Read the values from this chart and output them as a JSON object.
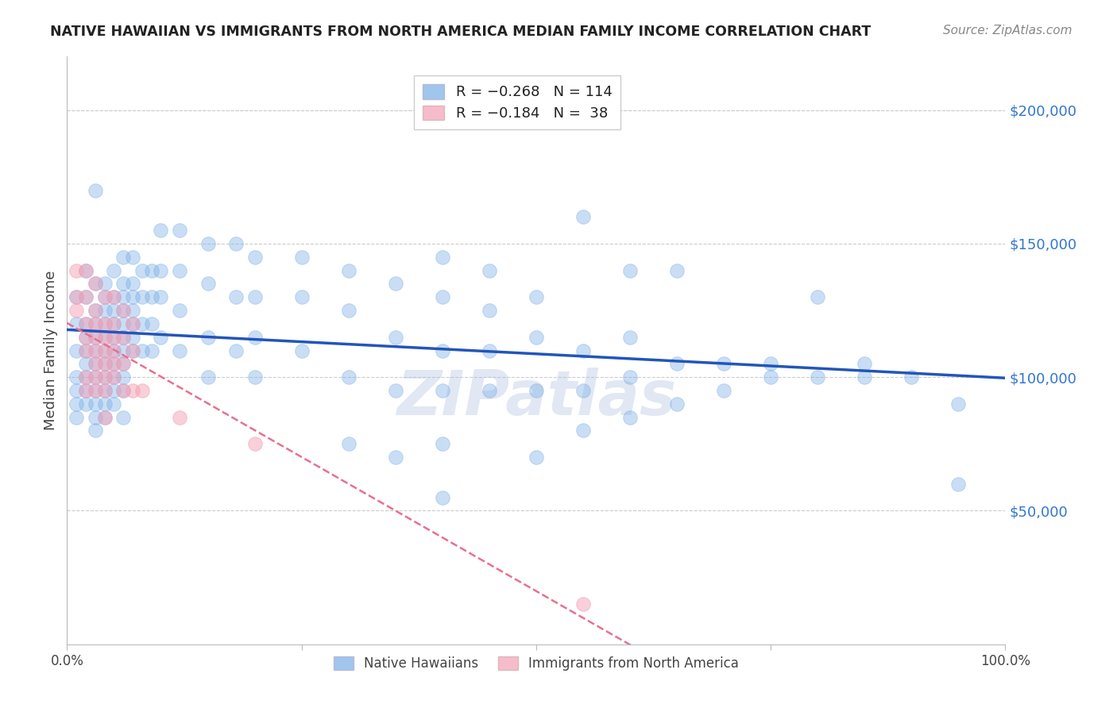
{
  "title": "NATIVE HAWAIIAN VS IMMIGRANTS FROM NORTH AMERICA MEDIAN FAMILY INCOME CORRELATION CHART",
  "source": "Source: ZipAtlas.com",
  "ylabel": "Median Family Income",
  "watermark": "ZIPatlas",
  "ytick_labels": [
    "$50,000",
    "$100,000",
    "$150,000",
    "$200,000"
  ],
  "ytick_values": [
    50000,
    100000,
    150000,
    200000
  ],
  "ylim": [
    0,
    220000
  ],
  "xlim": [
    0.0,
    1.0
  ],
  "legend_labels_bottom": [
    "Native Hawaiians",
    "Immigrants from North America"
  ],
  "blue_color": "#7aaee8",
  "pink_color": "#f4a0b5",
  "blue_line_color": "#2255bb",
  "pink_line_color": "#e87090",
  "grid_color": "#cccccc",
  "title_color": "#222222",
  "axis_label_color": "#444444",
  "ytick_color": "#3377cc",
  "xtick_color": "#444444",
  "blue_points": [
    [
      0.01,
      130000
    ],
    [
      0.01,
      120000
    ],
    [
      0.01,
      110000
    ],
    [
      0.01,
      100000
    ],
    [
      0.01,
      95000
    ],
    [
      0.01,
      90000
    ],
    [
      0.01,
      85000
    ],
    [
      0.02,
      140000
    ],
    [
      0.02,
      130000
    ],
    [
      0.02,
      120000
    ],
    [
      0.02,
      115000
    ],
    [
      0.02,
      110000
    ],
    [
      0.02,
      105000
    ],
    [
      0.02,
      100000
    ],
    [
      0.02,
      95000
    ],
    [
      0.02,
      90000
    ],
    [
      0.03,
      170000
    ],
    [
      0.03,
      135000
    ],
    [
      0.03,
      125000
    ],
    [
      0.03,
      120000
    ],
    [
      0.03,
      115000
    ],
    [
      0.03,
      110000
    ],
    [
      0.03,
      105000
    ],
    [
      0.03,
      100000
    ],
    [
      0.03,
      95000
    ],
    [
      0.03,
      90000
    ],
    [
      0.03,
      85000
    ],
    [
      0.03,
      80000
    ],
    [
      0.04,
      135000
    ],
    [
      0.04,
      130000
    ],
    [
      0.04,
      125000
    ],
    [
      0.04,
      120000
    ],
    [
      0.04,
      115000
    ],
    [
      0.04,
      110000
    ],
    [
      0.04,
      105000
    ],
    [
      0.04,
      100000
    ],
    [
      0.04,
      95000
    ],
    [
      0.04,
      90000
    ],
    [
      0.04,
      85000
    ],
    [
      0.05,
      140000
    ],
    [
      0.05,
      130000
    ],
    [
      0.05,
      125000
    ],
    [
      0.05,
      120000
    ],
    [
      0.05,
      115000
    ],
    [
      0.05,
      110000
    ],
    [
      0.05,
      105000
    ],
    [
      0.05,
      100000
    ],
    [
      0.05,
      95000
    ],
    [
      0.05,
      90000
    ],
    [
      0.06,
      145000
    ],
    [
      0.06,
      135000
    ],
    [
      0.06,
      130000
    ],
    [
      0.06,
      125000
    ],
    [
      0.06,
      120000
    ],
    [
      0.06,
      115000
    ],
    [
      0.06,
      110000
    ],
    [
      0.06,
      105000
    ],
    [
      0.06,
      100000
    ],
    [
      0.06,
      95000
    ],
    [
      0.06,
      85000
    ],
    [
      0.07,
      145000
    ],
    [
      0.07,
      135000
    ],
    [
      0.07,
      130000
    ],
    [
      0.07,
      125000
    ],
    [
      0.07,
      120000
    ],
    [
      0.07,
      115000
    ],
    [
      0.07,
      110000
    ],
    [
      0.08,
      140000
    ],
    [
      0.08,
      130000
    ],
    [
      0.08,
      120000
    ],
    [
      0.08,
      110000
    ],
    [
      0.09,
      140000
    ],
    [
      0.09,
      130000
    ],
    [
      0.09,
      120000
    ],
    [
      0.09,
      110000
    ],
    [
      0.1,
      155000
    ],
    [
      0.1,
      140000
    ],
    [
      0.1,
      130000
    ],
    [
      0.1,
      115000
    ],
    [
      0.12,
      155000
    ],
    [
      0.12,
      140000
    ],
    [
      0.12,
      125000
    ],
    [
      0.12,
      110000
    ],
    [
      0.15,
      150000
    ],
    [
      0.15,
      135000
    ],
    [
      0.15,
      115000
    ],
    [
      0.15,
      100000
    ],
    [
      0.18,
      150000
    ],
    [
      0.18,
      130000
    ],
    [
      0.18,
      110000
    ],
    [
      0.2,
      145000
    ],
    [
      0.2,
      130000
    ],
    [
      0.2,
      115000
    ],
    [
      0.2,
      100000
    ],
    [
      0.25,
      145000
    ],
    [
      0.25,
      130000
    ],
    [
      0.25,
      110000
    ],
    [
      0.3,
      140000
    ],
    [
      0.3,
      125000
    ],
    [
      0.3,
      100000
    ],
    [
      0.3,
      75000
    ],
    [
      0.35,
      135000
    ],
    [
      0.35,
      115000
    ],
    [
      0.35,
      95000
    ],
    [
      0.35,
      70000
    ],
    [
      0.4,
      145000
    ],
    [
      0.4,
      130000
    ],
    [
      0.4,
      110000
    ],
    [
      0.4,
      95000
    ],
    [
      0.4,
      75000
    ],
    [
      0.4,
      55000
    ],
    [
      0.45,
      140000
    ],
    [
      0.45,
      125000
    ],
    [
      0.45,
      110000
    ],
    [
      0.45,
      95000
    ],
    [
      0.5,
      130000
    ],
    [
      0.5,
      115000
    ],
    [
      0.5,
      95000
    ],
    [
      0.5,
      70000
    ],
    [
      0.55,
      160000
    ],
    [
      0.55,
      110000
    ],
    [
      0.55,
      95000
    ],
    [
      0.55,
      80000
    ],
    [
      0.6,
      140000
    ],
    [
      0.6,
      115000
    ],
    [
      0.6,
      100000
    ],
    [
      0.6,
      85000
    ],
    [
      0.65,
      140000
    ],
    [
      0.65,
      105000
    ],
    [
      0.65,
      90000
    ],
    [
      0.7,
      105000
    ],
    [
      0.7,
      95000
    ],
    [
      0.75,
      105000
    ],
    [
      0.75,
      100000
    ],
    [
      0.8,
      130000
    ],
    [
      0.8,
      100000
    ],
    [
      0.85,
      105000
    ],
    [
      0.85,
      100000
    ],
    [
      0.9,
      100000
    ],
    [
      0.95,
      90000
    ],
    [
      0.95,
      60000
    ]
  ],
  "pink_points": [
    [
      0.01,
      140000
    ],
    [
      0.01,
      130000
    ],
    [
      0.01,
      125000
    ],
    [
      0.02,
      140000
    ],
    [
      0.02,
      130000
    ],
    [
      0.02,
      120000
    ],
    [
      0.02,
      115000
    ],
    [
      0.02,
      110000
    ],
    [
      0.02,
      100000
    ],
    [
      0.02,
      95000
    ],
    [
      0.03,
      135000
    ],
    [
      0.03,
      125000
    ],
    [
      0.03,
      120000
    ],
    [
      0.03,
      115000
    ],
    [
      0.03,
      110000
    ],
    [
      0.03,
      105000
    ],
    [
      0.03,
      100000
    ],
    [
      0.03,
      95000
    ],
    [
      0.04,
      130000
    ],
    [
      0.04,
      120000
    ],
    [
      0.04,
      115000
    ],
    [
      0.04,
      110000
    ],
    [
      0.04,
      105000
    ],
    [
      0.04,
      100000
    ],
    [
      0.04,
      95000
    ],
    [
      0.04,
      85000
    ],
    [
      0.05,
      130000
    ],
    [
      0.05,
      120000
    ],
    [
      0.05,
      115000
    ],
    [
      0.05,
      110000
    ],
    [
      0.05,
      105000
    ],
    [
      0.05,
      100000
    ],
    [
      0.06,
      125000
    ],
    [
      0.06,
      115000
    ],
    [
      0.06,
      105000
    ],
    [
      0.06,
      95000
    ],
    [
      0.07,
      120000
    ],
    [
      0.07,
      110000
    ],
    [
      0.07,
      95000
    ],
    [
      0.08,
      95000
    ],
    [
      0.12,
      85000
    ],
    [
      0.2,
      75000
    ],
    [
      0.55,
      15000
    ]
  ]
}
